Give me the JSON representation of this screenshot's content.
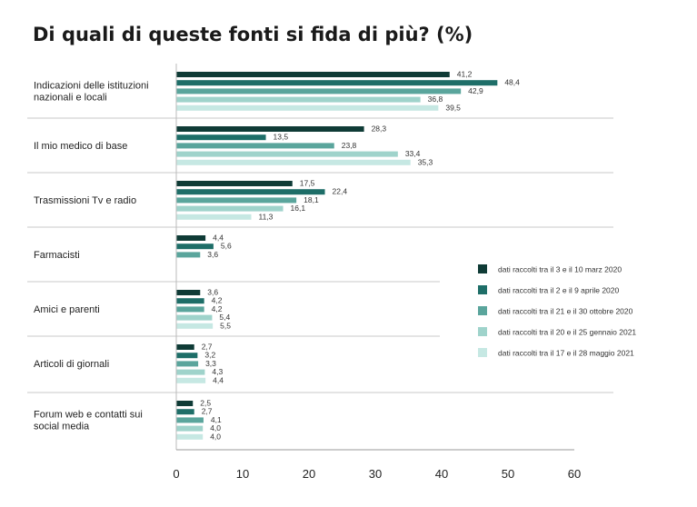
{
  "chart_data": {
    "type": "bar",
    "orientation": "horizontal",
    "title": "Di quali di queste fonti si fida di più? (%)",
    "categories": [
      [
        "Indicazioni delle istituzioni",
        "nazionali e locali"
      ],
      [
        "Il mio medico di base"
      ],
      [
        "Trasmissioni Tv e radio"
      ],
      [
        "Farmacisti"
      ],
      [
        "Amici e parenti"
      ],
      [
        "Articoli di giornali"
      ],
      [
        "Forum web e contatti sui",
        "social media"
      ]
    ],
    "series": [
      {
        "name": "dati raccolti tra il 3 e il 10 marz 2020",
        "color": "#0f3b36",
        "values": [
          41.2,
          28.3,
          17.5,
          4.4,
          3.6,
          2.7,
          2.5
        ],
        "labels": [
          "41,2",
          "28,3",
          "17,5",
          "4,4",
          "3,6",
          "2,7",
          "2,5"
        ]
      },
      {
        "name": "dati raccolti tra il 2 e il 9 aprile 2020",
        "color": "#1e6e68",
        "values": [
          48.4,
          13.5,
          22.4,
          5.6,
          4.2,
          3.2,
          2.7
        ],
        "labels": [
          "48,4",
          "13,5",
          "22,4",
          "5,6",
          "4,2",
          "3,2",
          "2,7"
        ]
      },
      {
        "name": "dati raccolti tra il 21 e il 30 ottobre 2020",
        "color": "#5aa59c",
        "values": [
          42.9,
          23.8,
          18.1,
          3.6,
          4.2,
          3.3,
          4.1
        ],
        "labels": [
          "42,9",
          "23,8",
          "18,1",
          "3,6",
          "4,2",
          "3,3",
          "4,1"
        ]
      },
      {
        "name": "dati raccolti tra il 20 e il 25 gennaio 2021",
        "color": "#9fd3cb",
        "values": [
          36.8,
          33.4,
          16.1,
          null,
          5.4,
          4.3,
          4.0
        ],
        "labels": [
          "36,8",
          "33,4",
          "16,1",
          null,
          "5,4",
          "4,3",
          "4,0"
        ]
      },
      {
        "name": "dati raccolti tra il 17 e il 28 maggio 2021",
        "color": "#c6e8e3",
        "values": [
          39.5,
          35.3,
          11.3,
          null,
          5.5,
          4.4,
          4.0
        ],
        "labels": [
          "39,5",
          "35,3",
          "11,3",
          null,
          "5,5",
          "4,4",
          "4,0"
        ]
      }
    ],
    "xlim": [
      0,
      60
    ],
    "xticks": [
      "0",
      "10",
      "20",
      "30",
      "40",
      "50",
      "60"
    ],
    "legend_position": "right",
    "grid": false
  }
}
